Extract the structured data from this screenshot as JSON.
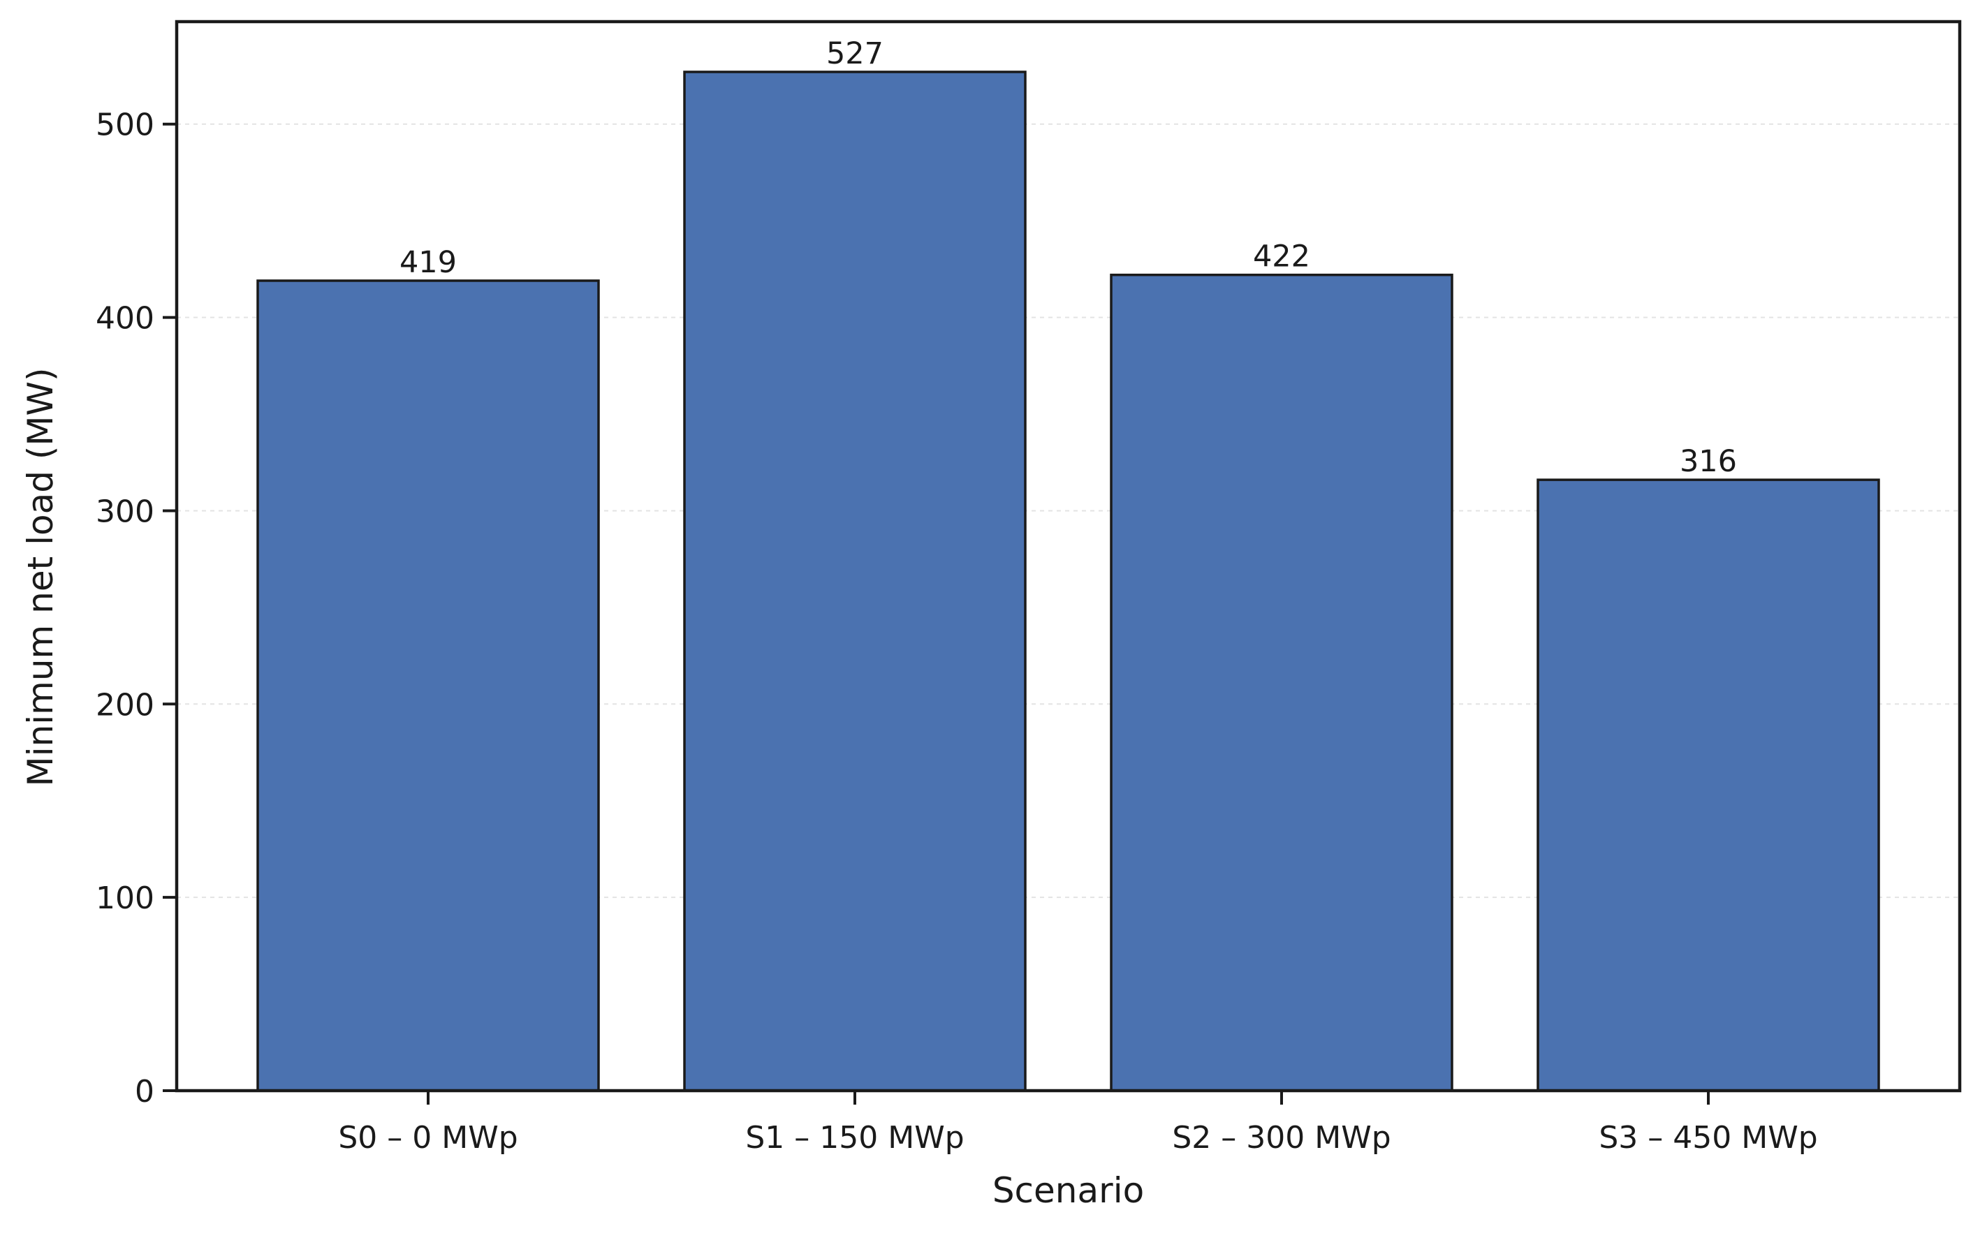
{
  "chart_data": {
    "type": "bar",
    "title": "",
    "xlabel": "Scenario",
    "ylabel": "Minimum net load (MW)",
    "categories": [
      "S0 – 0 MWp",
      "S1 – 150 MWp",
      "S2 – 300 MWp",
      "S3 – 450 MWp"
    ],
    "values": [
      419,
      527,
      422,
      316
    ],
    "data_labels": [
      "419",
      "527",
      "422",
      "316"
    ],
    "ylim": [
      0,
      553
    ],
    "yticks": [
      0,
      100,
      200,
      300,
      400,
      500
    ],
    "grid": "horizontal dashed",
    "legend": "none",
    "bar_color": "#4b72b0",
    "edge_color": "#1a1a1a"
  }
}
